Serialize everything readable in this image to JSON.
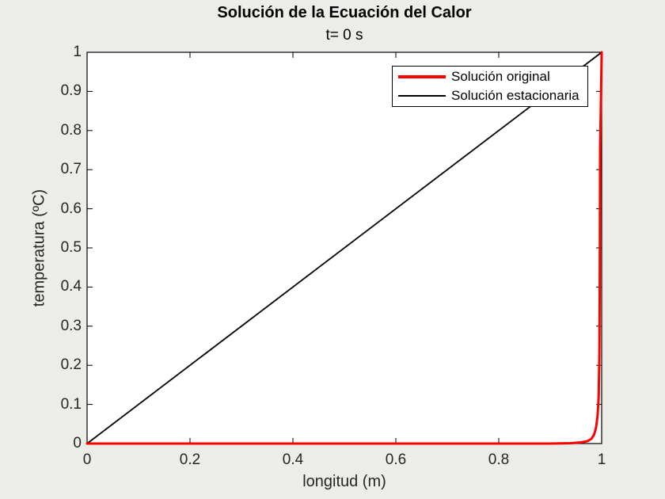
{
  "figure": {
    "background": "#ebebe8",
    "plot_background": "#ffffff"
  },
  "chart_data": {
    "type": "line",
    "title": "Solución de la Ecuación del Calor",
    "subtitle": "t= 0 s",
    "xlabel": "longitud (m)",
    "ylabel": "temperatura (ºC)",
    "xlim": [
      0,
      1
    ],
    "ylim": [
      0,
      1
    ],
    "grid": false,
    "box": true,
    "axis_color": "#000000",
    "tick_label_color": "#262626",
    "plot_bg": "#ffffff",
    "legend": {
      "position": "northeast",
      "border": true,
      "entries": [
        "Solución original",
        "Solución estacionaria"
      ]
    },
    "xticks": {
      "values": [
        0,
        0.2,
        0.4,
        0.6,
        0.8,
        1
      ],
      "labels": [
        "0",
        "0.2",
        "0.4",
        "0.6",
        "0.8",
        "1"
      ]
    },
    "yticks": {
      "values": [
        0,
        0.1,
        0.2,
        0.3,
        0.4,
        0.5,
        0.6,
        0.7,
        0.8,
        0.9,
        1
      ],
      "labels": [
        "0",
        "0.1",
        "0.2",
        "0.3",
        "0.4",
        "0.5",
        "0.6",
        "0.7",
        "0.8",
        "0.9",
        "1"
      ]
    },
    "series": [
      {
        "name": "Solución original",
        "color": "#ff0000",
        "width": 3,
        "swatch_height": 4,
        "x": [
          0,
          0.2,
          0.4,
          0.6,
          0.8,
          0.9,
          0.94,
          0.96,
          0.972,
          0.98,
          0.985,
          0.989,
          0.992,
          0.9942,
          0.9955,
          0.9962,
          0.9966,
          0.997,
          1
        ],
        "y": [
          0,
          0,
          0,
          0,
          0,
          0,
          0.001,
          0.003,
          0.006,
          0.012,
          0.022,
          0.04,
          0.07,
          0.12,
          0.22,
          0.38,
          0.55,
          0.75,
          1
        ]
      },
      {
        "name": "Solución estacionaria",
        "color": "#000000",
        "width": 1.8,
        "swatch_height": 2,
        "x": [
          0,
          1
        ],
        "y": [
          0,
          1
        ]
      }
    ]
  }
}
